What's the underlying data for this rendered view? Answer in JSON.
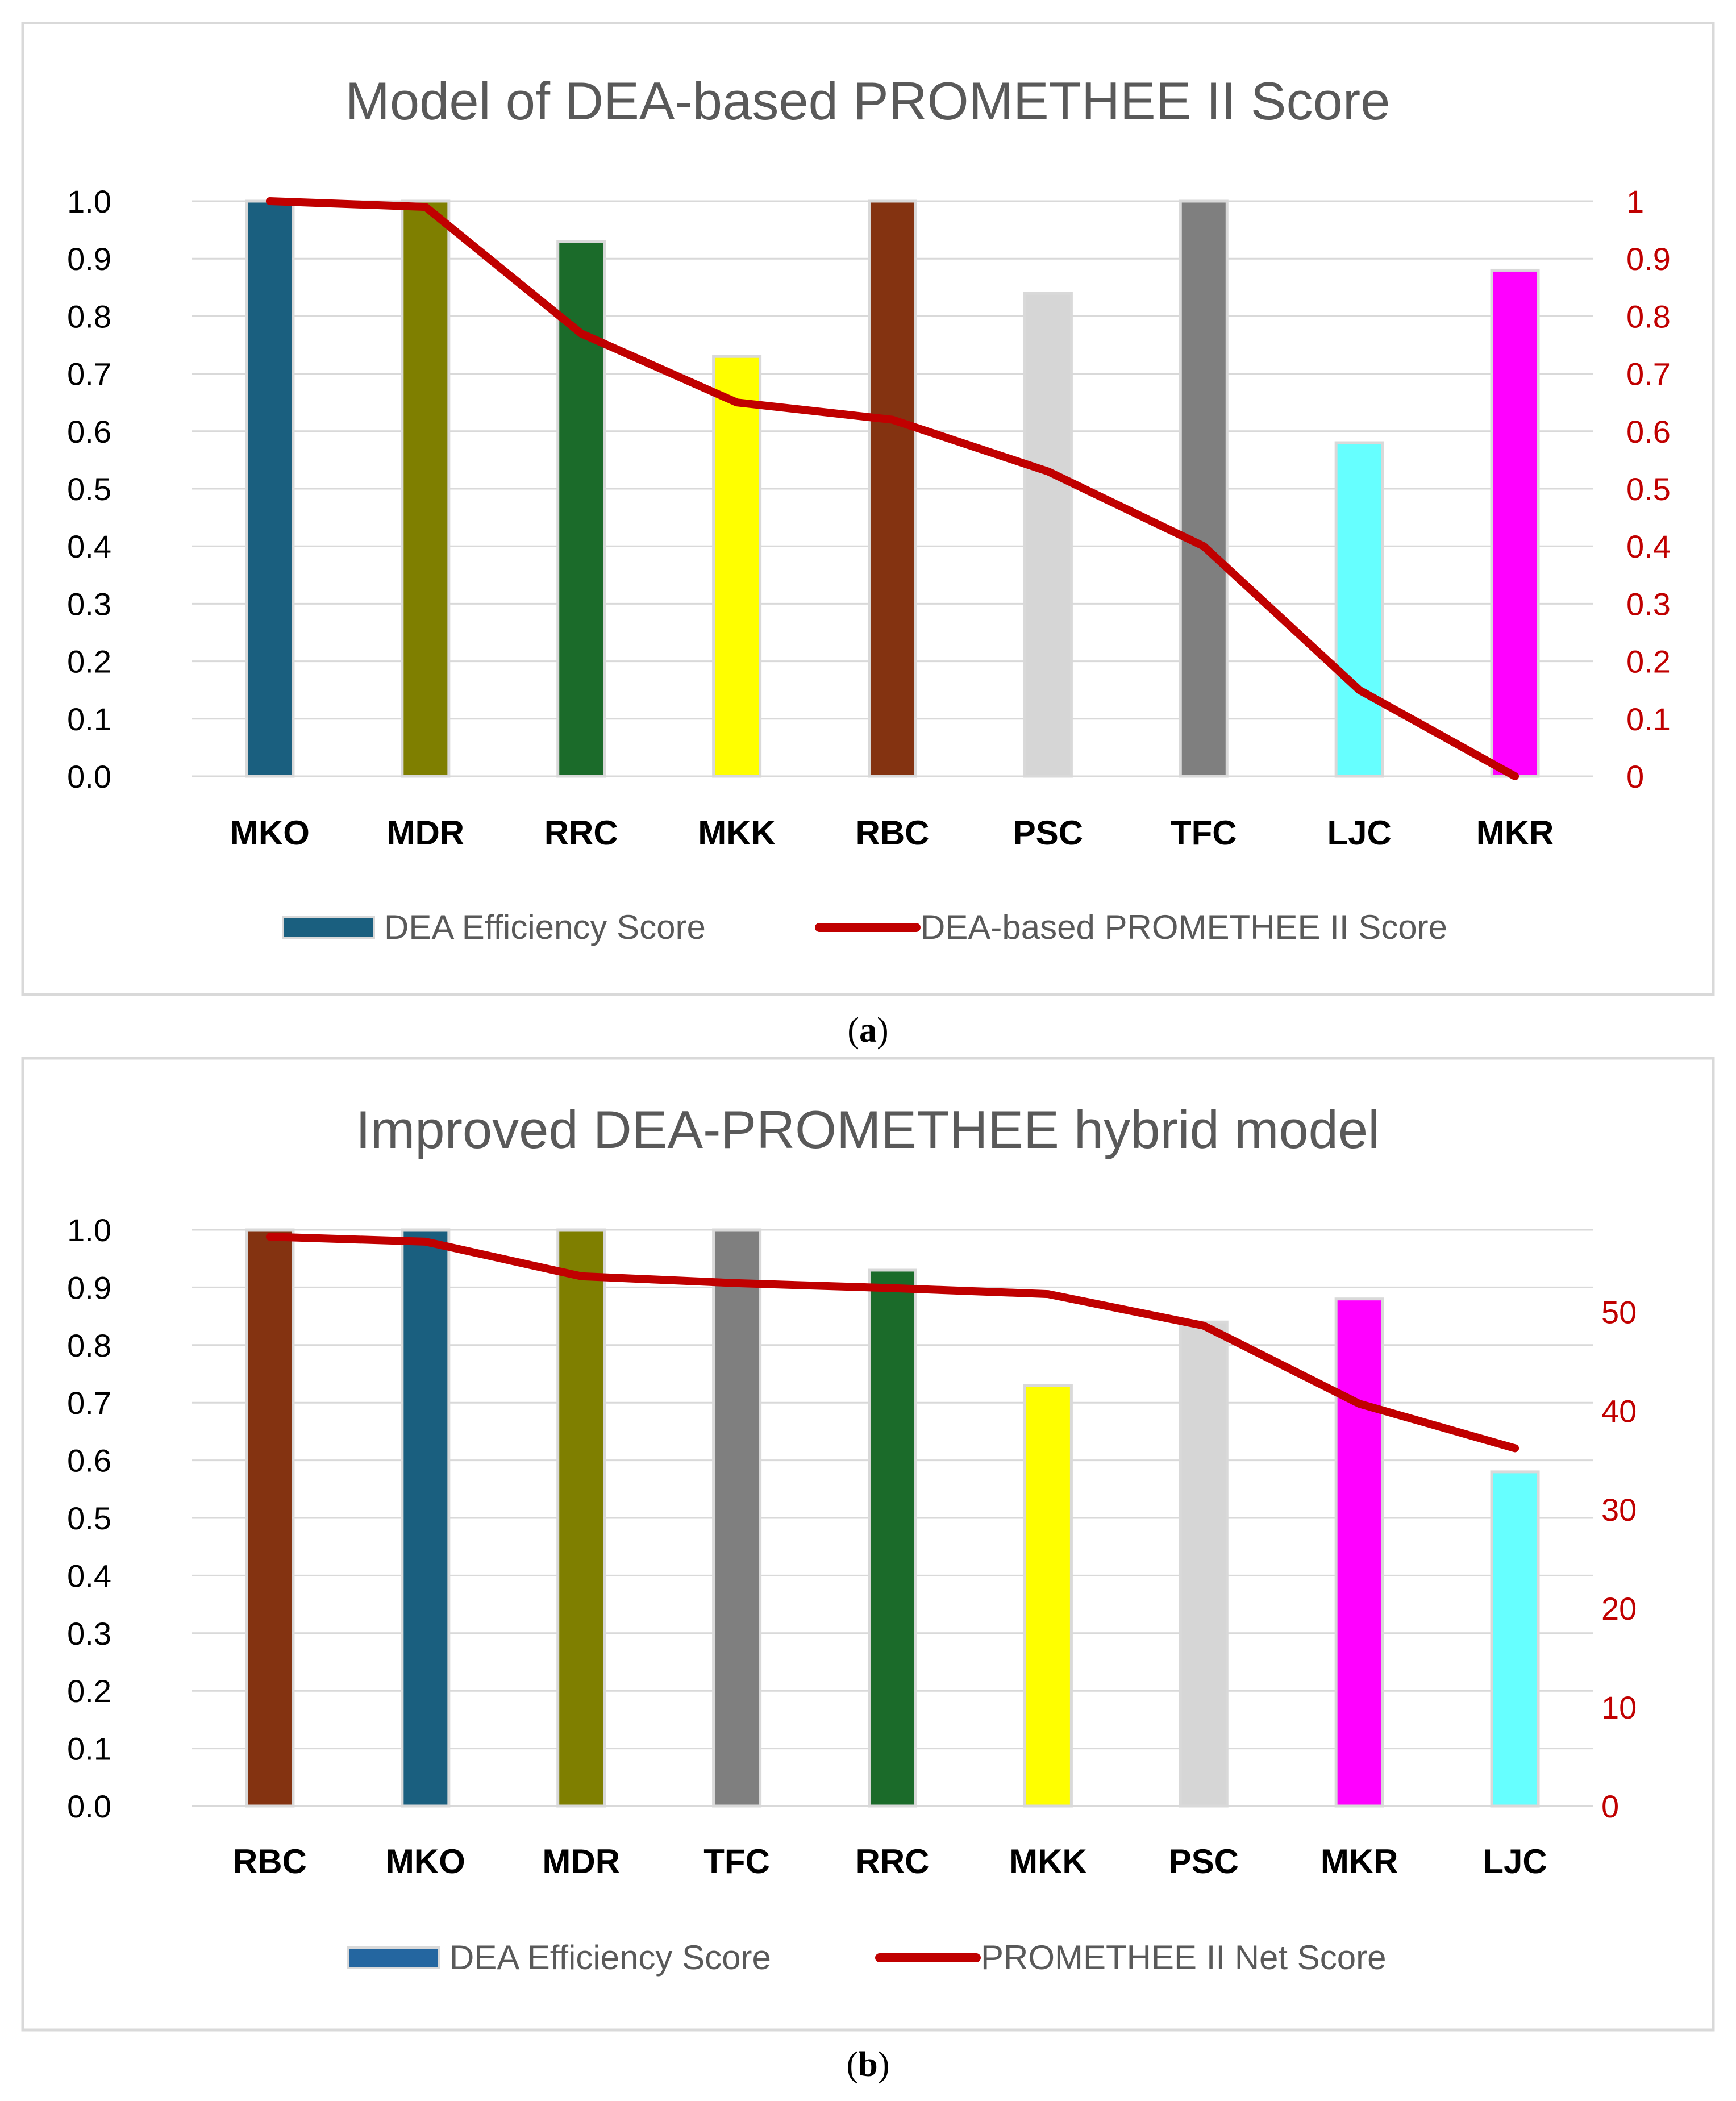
{
  "chart_data": [
    {
      "type": "bar",
      "title": "Model of DEA-based PROMETHEE II Score",
      "categories": [
        "MKO",
        "MDR",
        "RRC",
        "MKK",
        "RBC",
        "PSC",
        "TFC",
        "LJC",
        "MKR"
      ],
      "bar_colors": [
        "#1a5f7f",
        "#7f7f00",
        "#1b6b2a",
        "#ffff00",
        "#843311",
        "#d6d6d6",
        "#7f7f7f",
        "#66ffff",
        "#ff00ff"
      ],
      "series": [
        {
          "name": "DEA Efficiency Score",
          "axis": "left",
          "kind": "bar",
          "values": [
            1.0,
            1.0,
            0.93,
            0.73,
            1.0,
            0.84,
            1.0,
            0.58,
            0.88
          ]
        },
        {
          "name": "DEA-based PROMETHEE II Score",
          "axis": "right",
          "kind": "line",
          "color": "#c00000",
          "values": [
            1.0,
            0.99,
            0.77,
            0.65,
            0.62,
            0.53,
            0.4,
            0.15,
            0.0
          ]
        }
      ],
      "left_axis": {
        "ylim": [
          0,
          1
        ],
        "ticks": [
          "0.0",
          "0.1",
          "0.2",
          "0.3",
          "0.4",
          "0.5",
          "0.6",
          "0.7",
          "0.8",
          "0.9",
          "1.0"
        ]
      },
      "right_axis": {
        "ylim": [
          0,
          1
        ],
        "ticks": [
          "0",
          "0.1",
          "0.2",
          "0.3",
          "0.4",
          "0.5",
          "0.6",
          "0.7",
          "0.8",
          "0.9",
          "1"
        ],
        "color": "#c00000"
      },
      "legend": {
        "position": "bottom",
        "bar_swatch_color": "#1a5f7f",
        "items": [
          "DEA Efficiency Score",
          "DEA-based PROMETHEE II Score"
        ]
      },
      "grid": true,
      "caption_letter": "a"
    },
    {
      "type": "bar",
      "title": "Improved DEA-PROMETHEE hybrid model",
      "categories": [
        "RBC",
        "MKO",
        "MDR",
        "TFC",
        "RRC",
        "MKK",
        "PSC",
        "MKR",
        "LJC"
      ],
      "bar_colors": [
        "#843311",
        "#1a5f7f",
        "#7f7f00",
        "#7f7f7f",
        "#1b6b2a",
        "#ffff00",
        "#d6d6d6",
        "#ff00ff",
        "#66ffff"
      ],
      "series": [
        {
          "name": "DEA Efficiency Score",
          "axis": "left",
          "kind": "bar",
          "values": [
            1.0,
            1.0,
            1.0,
            1.0,
            0.93,
            0.73,
            0.84,
            0.88,
            0.58
          ]
        },
        {
          "name": "PROMETHEE II Net Score",
          "axis": "right",
          "kind": "line",
          "color": "#c00000",
          "values": [
            57.6,
            57.1,
            53.6,
            52.9,
            52.4,
            51.8,
            48.6,
            40.7,
            36.2
          ]
        }
      ],
      "left_axis": {
        "ylim": [
          0,
          1
        ],
        "ticks": [
          "0.0",
          "0.1",
          "0.2",
          "0.3",
          "0.4",
          "0.5",
          "0.6",
          "0.7",
          "0.8",
          "0.9",
          "1.0"
        ]
      },
      "right_axis": {
        "ylim": [
          0,
          58.3
        ],
        "tick_values": [
          0,
          10,
          20,
          30,
          40,
          50
        ],
        "ticks": [
          "0",
          "10",
          "20",
          "30",
          "40",
          "50"
        ],
        "color": "#c00000"
      },
      "legend": {
        "position": "bottom",
        "bar_swatch_color": "#2466a0",
        "items": [
          "DEA Efficiency Score",
          "PROMETHEE II Net Score"
        ]
      },
      "grid": true,
      "caption_letter": "b"
    }
  ],
  "captions": [
    {
      "open": "(",
      "letter": "a",
      "close": ")"
    },
    {
      "open": "(",
      "letter": "b",
      "close": ")"
    }
  ]
}
